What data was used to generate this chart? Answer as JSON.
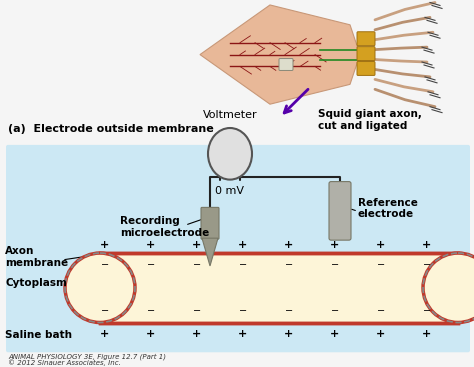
{
  "bg_color": "#f5f5f5",
  "saline_bg": "#cce8f4",
  "axon_fill": "#fdf5d8",
  "axon_border": "#c0392b",
  "title_label": "(a)  Electrode outside membrane",
  "squid_label": "Squid giant axon,\ncut and ligated",
  "voltmeter_label": "Voltmeter",
  "mv_label": "0 mV",
  "recording_label": "Recording\nmicroelectrode",
  "reference_label": "Reference\nelectrode",
  "axon_membrane_label": "Axon\nmembrane",
  "cytoplasm_label": "Cytoplasm",
  "saline_label": "Saline bath",
  "caption_line1": "ANIMAL PHYSIOLOGY 3E, Figure 12.7 (Part 1)",
  "caption_line2": "© 2012 Sinauer Associates, Inc.",
  "squid_color_body": "#e8b898",
  "squid_color_dark": "#c89878",
  "nerve_color": "#8b1515",
  "tentacle_color": "#c8a080",
  "arrow_color": "#5500aa",
  "electrode_color": "#aaaaaa",
  "electrode_tip_color": "#999988",
  "wire_color": "#222222",
  "voltmeter_fill": "#e0e0e0"
}
